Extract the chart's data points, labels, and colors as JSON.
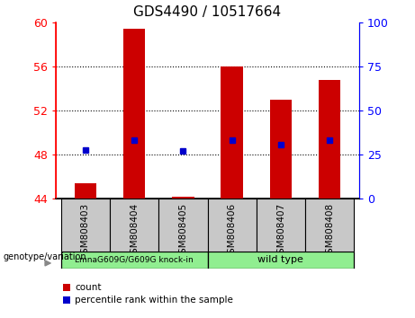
{
  "title": "GDS4490 / 10517664",
  "samples": [
    "GSM808403",
    "GSM808404",
    "GSM808405",
    "GSM808406",
    "GSM808407",
    "GSM808408"
  ],
  "bar_tops": [
    45.4,
    59.4,
    44.2,
    56.0,
    53.0,
    54.8
  ],
  "bar_base": 44.0,
  "percentile_y": [
    48.4,
    49.3,
    48.3,
    49.3,
    48.9,
    49.3
  ],
  "ylim_left": [
    44,
    60
  ],
  "ylim_right": [
    0,
    100
  ],
  "yticks_left": [
    44,
    48,
    52,
    56,
    60
  ],
  "yticks_right": [
    0,
    25,
    50,
    75,
    100
  ],
  "bar_color": "#cc0000",
  "blue_color": "#0000cc",
  "group1_label": "LmnaG609G/G609G knock-in",
  "group2_label": "wild type",
  "group_bg_color": "#c8c8c8",
  "group1_color": "#90ee90",
  "group2_color": "#90ee90",
  "genotype_label": "genotype/variation",
  "legend_count_label": "count",
  "legend_percentile_label": "percentile rank within the sample",
  "title_fontsize": 11,
  "tick_fontsize": 9
}
